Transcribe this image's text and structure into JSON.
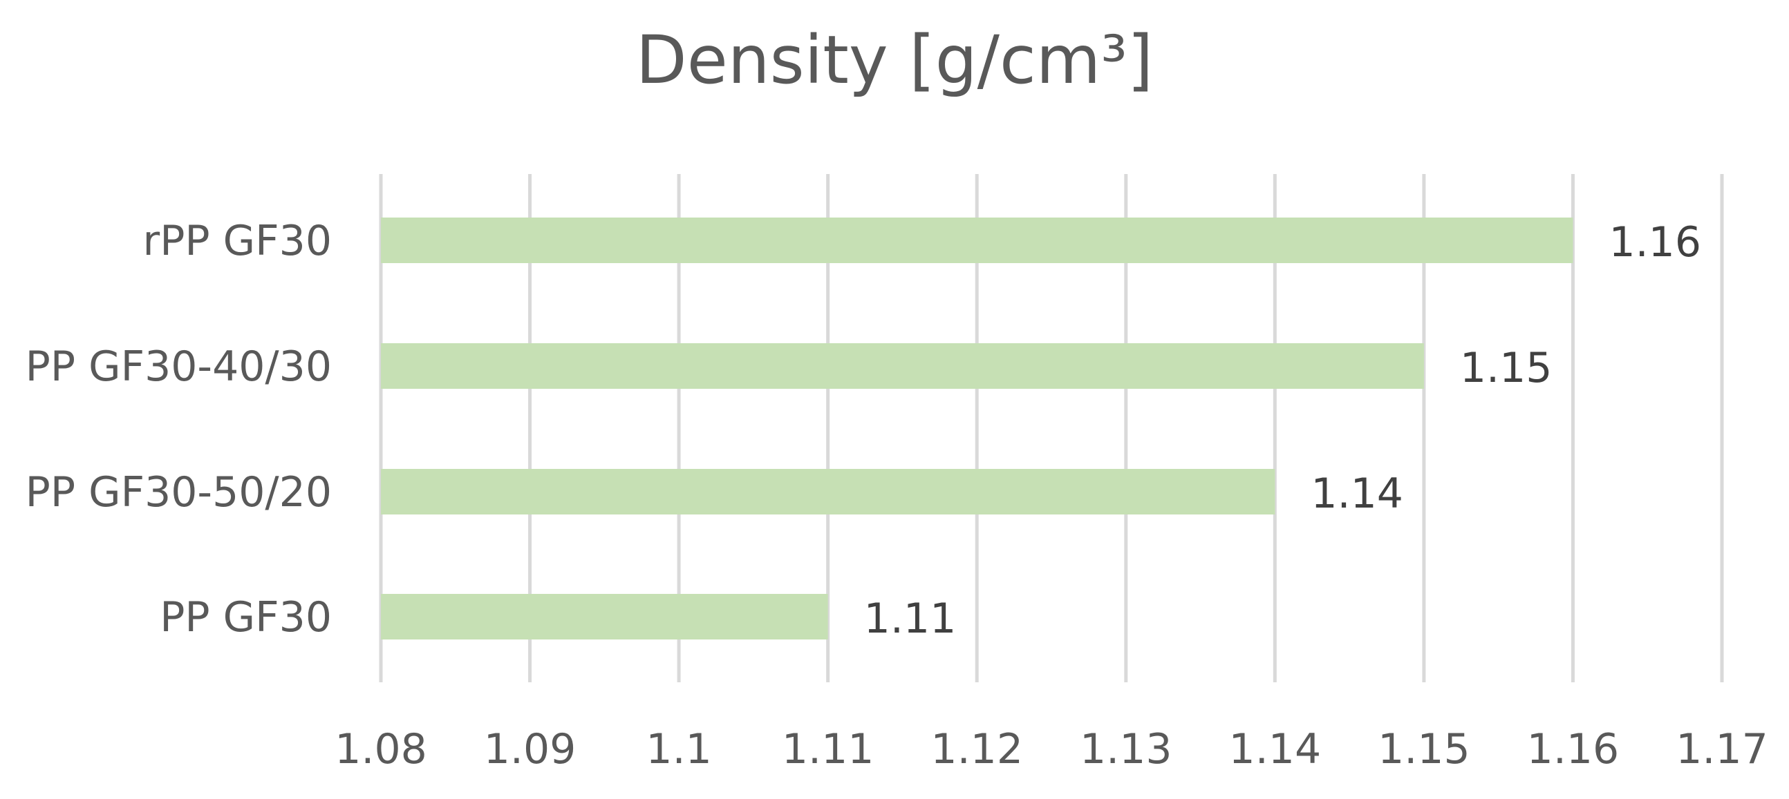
{
  "chart_data": {
    "type": "bar",
    "orientation": "horizontal",
    "title": "Density [g/cm³]",
    "categories": [
      "rPP GF30",
      "PP GF30-40/30",
      "PP GF30-50/20",
      "PP GF30"
    ],
    "values": [
      1.16,
      1.15,
      1.14,
      1.11
    ],
    "data_labels": [
      "1.16",
      "1.15",
      "1.14",
      "1.11"
    ],
    "xlim": [
      1.08,
      1.17
    ],
    "x_ticks": [
      1.08,
      1.09,
      1.1,
      1.11,
      1.12,
      1.13,
      1.14,
      1.15,
      1.16,
      1.17
    ],
    "x_tick_labels": [
      "1.08",
      "1.09",
      "1.1",
      "1.11",
      "1.12",
      "1.13",
      "1.14",
      "1.15",
      "1.16",
      "1.17"
    ],
    "grid": true,
    "legend": "none",
    "bar_color": "#c6e0b4",
    "grid_color": "#d9d9d9",
    "text_color": "#595959",
    "data_label_color": "#404040"
  }
}
